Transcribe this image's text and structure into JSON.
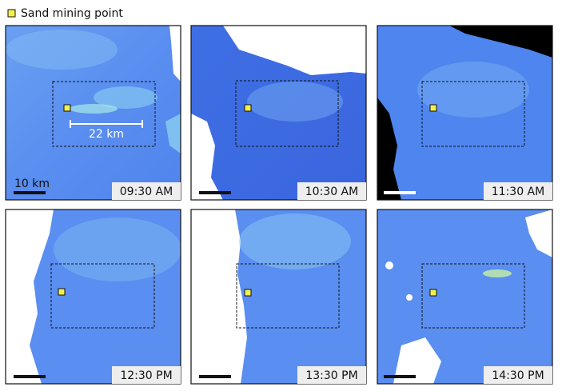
{
  "legend": {
    "label": "Sand mining point"
  },
  "panels": [
    {
      "time": "09:30 AM"
    },
    {
      "time": "10:30 AM"
    },
    {
      "time": "11:30 AM"
    },
    {
      "time": "12:30 PM"
    },
    {
      "time": "13:30 PM"
    },
    {
      "time": "14:30 PM"
    }
  ],
  "annotations": {
    "distance": "22 km",
    "scale": "10 km"
  }
}
